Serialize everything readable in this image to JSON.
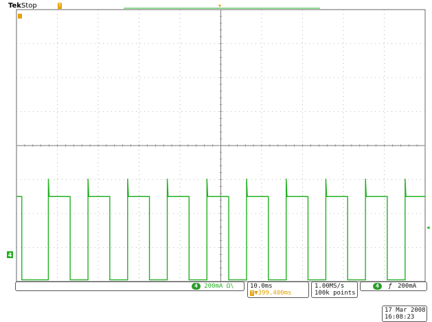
{
  "header": {
    "brand": "Tek",
    "status": "Stop",
    "trigger_marker": "T",
    "channel_marker": "1"
  },
  "channel": {
    "number": "4",
    "scale": "200mA",
    "coupling_symbol": "Ω\\",
    "color": "#22b022",
    "ground_marker": "4"
  },
  "timebase": {
    "scale": "10.0ms",
    "trigger_position": "▼399.400ms",
    "position_color": "#e0a000"
  },
  "acquisition": {
    "sample_rate": "1.00MS/s",
    "record_length": "100k points"
  },
  "trigger": {
    "source": "4",
    "slope_symbol": "ƒ",
    "level": "200mA"
  },
  "datetime": {
    "date": "17 Mar 2008",
    "time": "16:08:23"
  },
  "colors": {
    "grid": "#7a7a7a",
    "trace": "#22b022",
    "trigger_orange": "#e8a000",
    "background": "#ffffff"
  },
  "waveform": {
    "type": "square",
    "high_level_div": -1.5,
    "low_level_div": -3.95,
    "period_div": 0.97,
    "duty_high": 0.55,
    "first_rising_div": 0.78
  }
}
